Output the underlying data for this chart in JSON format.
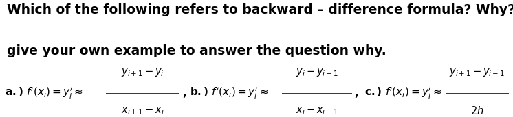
{
  "background_color": "#ffffff",
  "text_color": "#000000",
  "line1": "Which of the following refers to backward – difference formula? Why? You can",
  "line2": "give your own example to answer the question why.",
  "body_fontsize": 13.5,
  "formula_fontsize": 11.0,
  "figsize": [
    7.46,
    1.71
  ],
  "dpi": 100
}
